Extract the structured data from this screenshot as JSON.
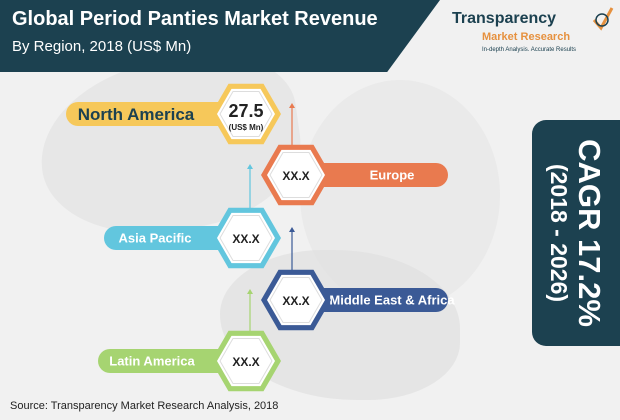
{
  "header": {
    "title": "Global Period Panties Market Revenue",
    "subtitle": "By Region, 2018 (US$ Mn)"
  },
  "logo": {
    "name": "Transparency",
    "sub": "Market Research",
    "tagline": "In-depth Analysis. Accurate Results"
  },
  "cagr": {
    "label": "CAGR 17.2%",
    "period": "(2018 - 2026)"
  },
  "source": "Source: Transparency Market Research Analysis, 2018",
  "colors": {
    "header_bg": "#1c4150",
    "north_america": "#f6c85a",
    "europe": "#e97a4f",
    "asia_pacific": "#62c6de",
    "middle_east_africa": "#3b5a96",
    "latin_america": "#a6d471"
  },
  "chart_data": {
    "type": "bar",
    "title": "Global Period Panties Market Revenue",
    "subtitle": "By Region, 2018 (US$ Mn)",
    "categories": [
      "North America",
      "Europe",
      "Asia Pacific",
      "Middle East & Africa",
      "Latin America"
    ],
    "value_labels": [
      "27.5",
      "XX.X",
      "XX.X",
      "XX.X",
      "XX.X"
    ],
    "unit_label": "(US$ Mn)",
    "values": [
      27.5,
      null,
      null,
      null,
      null
    ]
  }
}
